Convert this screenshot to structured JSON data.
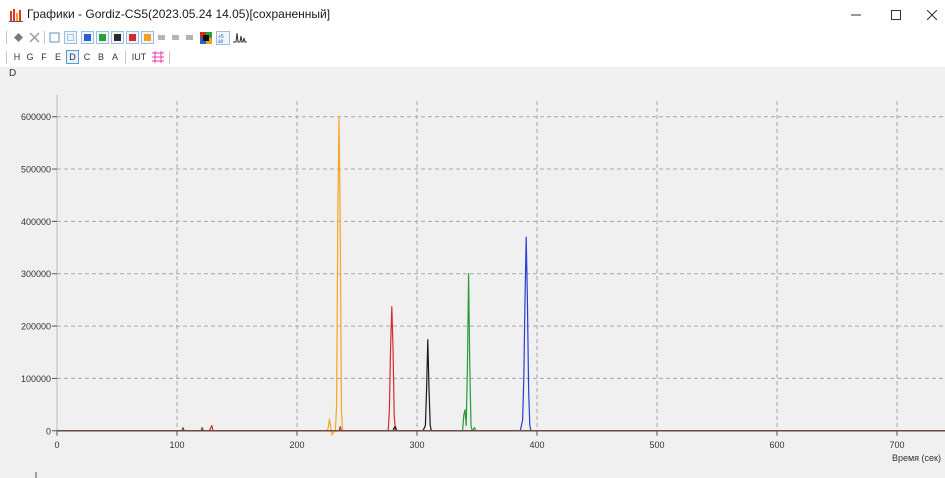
{
  "window": {
    "title": "Графики - Gordiz-CS5(2023.05.24 14.05)[сохраненный]",
    "icon": "bar-chart-icon",
    "controls": [
      "minimize-icon",
      "maximize-icon",
      "close-icon"
    ]
  },
  "toolbar_top": {
    "items": [
      {
        "icon": "diamond-icon"
      },
      {
        "icon": "x-icon"
      },
      {
        "icon": "square-outline-icon"
      },
      {
        "icon": "zoom-square-icon"
      },
      {
        "icon": "color-square-icon",
        "color": "#2a62c9"
      },
      {
        "icon": "color-square-icon",
        "color": "#2e9e3a"
      },
      {
        "icon": "color-square-icon",
        "color": "#2a2a2a"
      },
      {
        "icon": "color-square-icon",
        "color": "#d02c2c"
      },
      {
        "icon": "color-square-icon",
        "color": "#f0a020"
      },
      {
        "icon": "grey-bar-icon"
      },
      {
        "icon": "grey-bar-icon"
      },
      {
        "icon": "grey-bar-icon"
      },
      {
        "icon": "multicolor-square-icon"
      },
      {
        "icon": "expand-arrows-icon"
      },
      {
        "icon": "peak-annotation-icon"
      }
    ]
  },
  "toolbar_letters": {
    "letters": [
      "H",
      "G",
      "F",
      "E",
      "D",
      "C",
      "B",
      "A"
    ],
    "active": "D",
    "extra_label": "IUT",
    "extra_icon": "pink-lines-icon"
  },
  "chart_data": {
    "type": "line",
    "ylabel": "D",
    "xlabel": "Время (сек)",
    "xlim": [
      0,
      740
    ],
    "ylim": [
      -10000,
      630000
    ],
    "xticks": [
      0,
      100,
      200,
      300,
      400,
      500,
      600,
      700
    ],
    "yticks": [
      0,
      100000,
      200000,
      300000,
      400000,
      500000,
      600000
    ],
    "ytick_labels": [
      "0",
      "100000",
      "200000",
      "300000",
      "400000",
      "500000",
      "600000"
    ],
    "grid": true,
    "series": [
      {
        "color": "#f5a623",
        "points": [
          [
            0,
            0
          ],
          [
            225,
            0
          ],
          [
            226,
            5000
          ],
          [
            227,
            22000
          ],
          [
            228,
            8000
          ],
          [
            229,
            -8000
          ],
          [
            230,
            -4000
          ],
          [
            232,
            0
          ],
          [
            233,
            50000
          ],
          [
            234,
            400000
          ],
          [
            235,
            600000
          ],
          [
            236,
            400000
          ],
          [
            237,
            40000
          ],
          [
            238,
            0
          ],
          [
            740,
            0
          ]
        ]
      },
      {
        "color": "#d62b2b",
        "points": [
          [
            0,
            0
          ],
          [
            127,
            0
          ],
          [
            128,
            5000
          ],
          [
            129,
            10000
          ],
          [
            130,
            0
          ],
          [
            235,
            0
          ],
          [
            236,
            8000
          ],
          [
            237,
            0
          ],
          [
            276,
            0
          ],
          [
            277,
            40000
          ],
          [
            278,
            160000
          ],
          [
            279,
            237000
          ],
          [
            280,
            160000
          ],
          [
            281,
            30000
          ],
          [
            282,
            0
          ],
          [
            740,
            0
          ]
        ]
      },
      {
        "color": "#1a1a1a",
        "points": [
          [
            0,
            0
          ],
          [
            280,
            0
          ],
          [
            281,
            6000
          ],
          [
            282,
            8000
          ],
          [
            283,
            0
          ],
          [
            305,
            0
          ],
          [
            307,
            10000
          ],
          [
            308,
            80000
          ],
          [
            309,
            174000
          ],
          [
            310,
            80000
          ],
          [
            311,
            10000
          ],
          [
            312,
            0
          ],
          [
            740,
            0
          ]
        ]
      },
      {
        "color": "#2b9a3a",
        "points": [
          [
            0,
            0
          ],
          [
            338,
            0
          ],
          [
            339,
            30000
          ],
          [
            340,
            40000
          ],
          [
            341,
            10000
          ],
          [
            342,
            120000
          ],
          [
            343,
            300000
          ],
          [
            344,
            120000
          ],
          [
            345,
            10000
          ],
          [
            346,
            0
          ],
          [
            348,
            6000
          ],
          [
            349,
            0
          ],
          [
            740,
            0
          ]
        ]
      },
      {
        "color": "#2a3cd6",
        "points": [
          [
            0,
            0
          ],
          [
            386,
            0
          ],
          [
            387,
            10000
          ],
          [
            388,
            20000
          ],
          [
            389,
            100000
          ],
          [
            390,
            250000
          ],
          [
            391,
            370000
          ],
          [
            392,
            250000
          ],
          [
            393,
            80000
          ],
          [
            394,
            10000
          ],
          [
            395,
            0
          ],
          [
            740,
            0
          ]
        ]
      },
      {
        "color": "#7a4a2a",
        "points": [
          [
            0,
            0
          ],
          [
            104,
            0
          ],
          [
            105,
            6000
          ],
          [
            106,
            0
          ],
          [
            120,
            0
          ],
          [
            121,
            6000
          ],
          [
            122,
            0
          ],
          [
            740,
            0
          ]
        ]
      }
    ]
  }
}
